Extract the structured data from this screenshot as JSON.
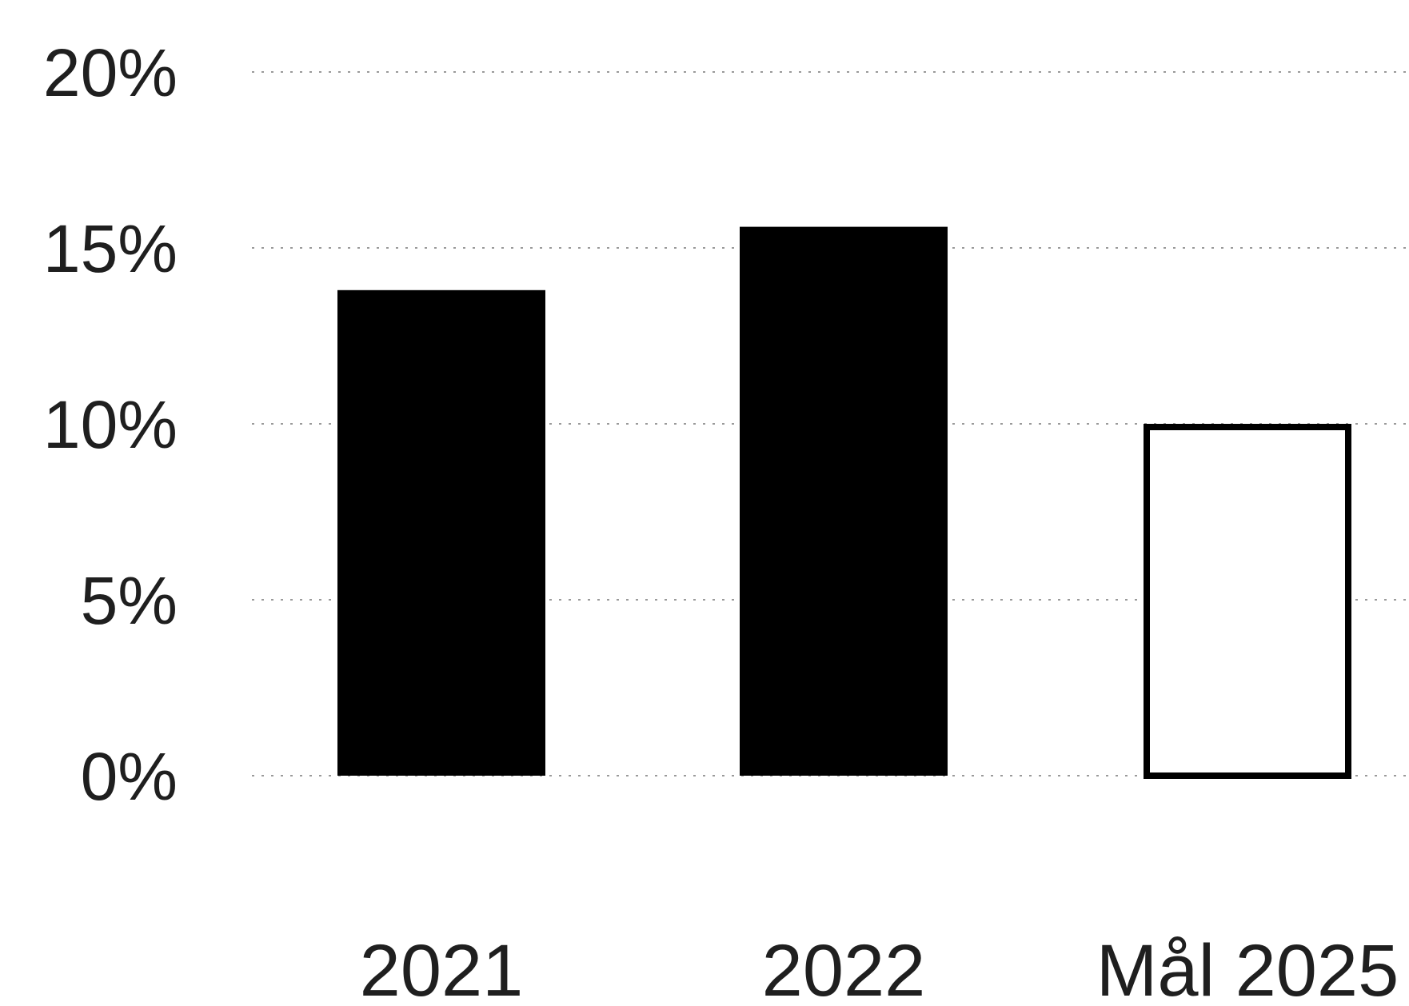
{
  "chart_data": {
    "type": "bar",
    "categories": [
      "2021",
      "2022",
      "Mål 2025"
    ],
    "values": [
      13.8,
      15.6,
      10.0
    ],
    "bar_styles": [
      "filled",
      "filled",
      "outline"
    ],
    "value_format": "percent",
    "ylim": [
      0,
      20
    ],
    "yticks": [
      0,
      5,
      10,
      15,
      20
    ],
    "ytick_labels": [
      "0%",
      "5%",
      "10%",
      "15%",
      "20%"
    ],
    "title": "",
    "xlabel": "",
    "ylabel": "",
    "grid": true,
    "legend": "none",
    "colors": {
      "bar": "#000000",
      "outline": "#000000",
      "grid": "#9a9a9a",
      "text": "#1f1f1f"
    }
  }
}
